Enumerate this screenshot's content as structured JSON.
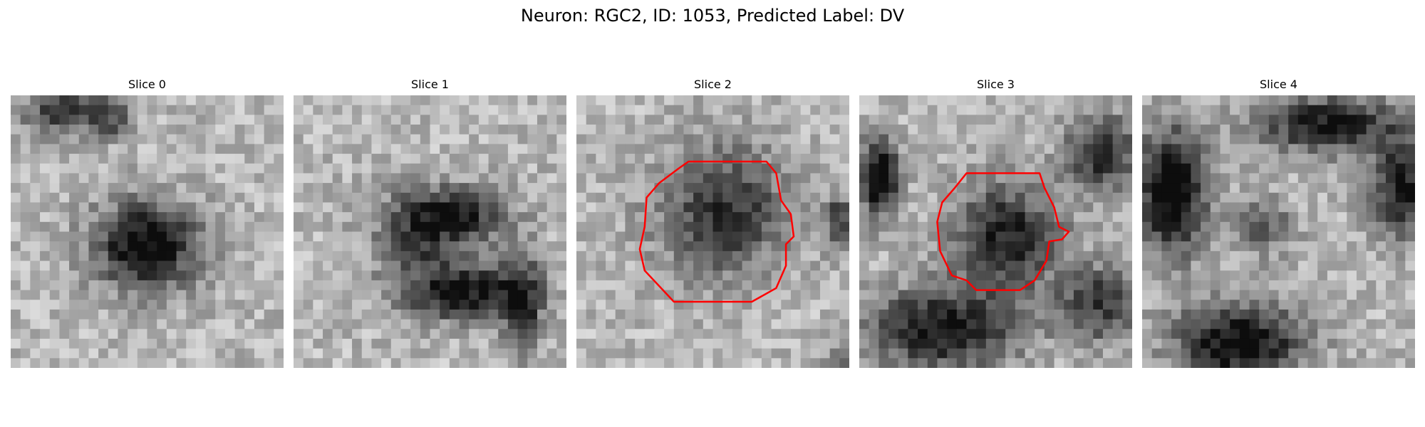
{
  "figure": {
    "title": "Neuron: RGC2, ID: 1053, Predicted Label: DV"
  },
  "colors": {
    "background": "#ffffff",
    "contour": "#ff0000",
    "text": "#000000"
  },
  "panels": [
    {
      "title": "Slice 0",
      "has_contour": false
    },
    {
      "title": "Slice 1",
      "has_contour": false
    },
    {
      "title": "Slice 2",
      "has_contour": true
    },
    {
      "title": "Slice 3",
      "has_contour": true
    },
    {
      "title": "Slice 4",
      "has_contour": false
    }
  ]
}
